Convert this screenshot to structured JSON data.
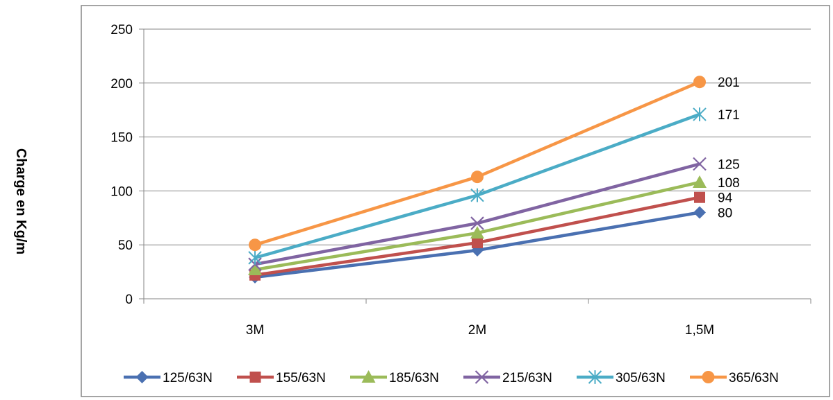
{
  "chart_data": {
    "type": "line",
    "title": "",
    "xlabel": "",
    "ylabel": "Charge en Kg/m",
    "categories": [
      "3M",
      "2M",
      "1,5M"
    ],
    "ylim": [
      0,
      250
    ],
    "yticks": [
      0,
      50,
      100,
      150,
      200,
      250
    ],
    "grid": true,
    "legend_position": "bottom",
    "series": [
      {
        "name": "125/63N",
        "values": [
          20,
          45,
          80
        ],
        "color": "#4a70b1",
        "marker": "diamond",
        "end_label": "80"
      },
      {
        "name": "155/63N",
        "values": [
          22,
          52,
          94
        ],
        "color": "#c0504d",
        "marker": "square",
        "end_label": "94"
      },
      {
        "name": "185/63N",
        "values": [
          27,
          61,
          108
        ],
        "color": "#9bbb59",
        "marker": "triangle",
        "end_label": "108"
      },
      {
        "name": "215/63N",
        "values": [
          32,
          70,
          125
        ],
        "color": "#8064a2",
        "marker": "x",
        "end_label": "125"
      },
      {
        "name": "305/63N",
        "values": [
          38,
          96,
          171
        ],
        "color": "#4bacc6",
        "marker": "star",
        "end_label": "171"
      },
      {
        "name": "365/63N",
        "values": [
          50,
          113,
          201
        ],
        "color": "#f79646",
        "marker": "circle",
        "end_label": "201"
      }
    ]
  }
}
